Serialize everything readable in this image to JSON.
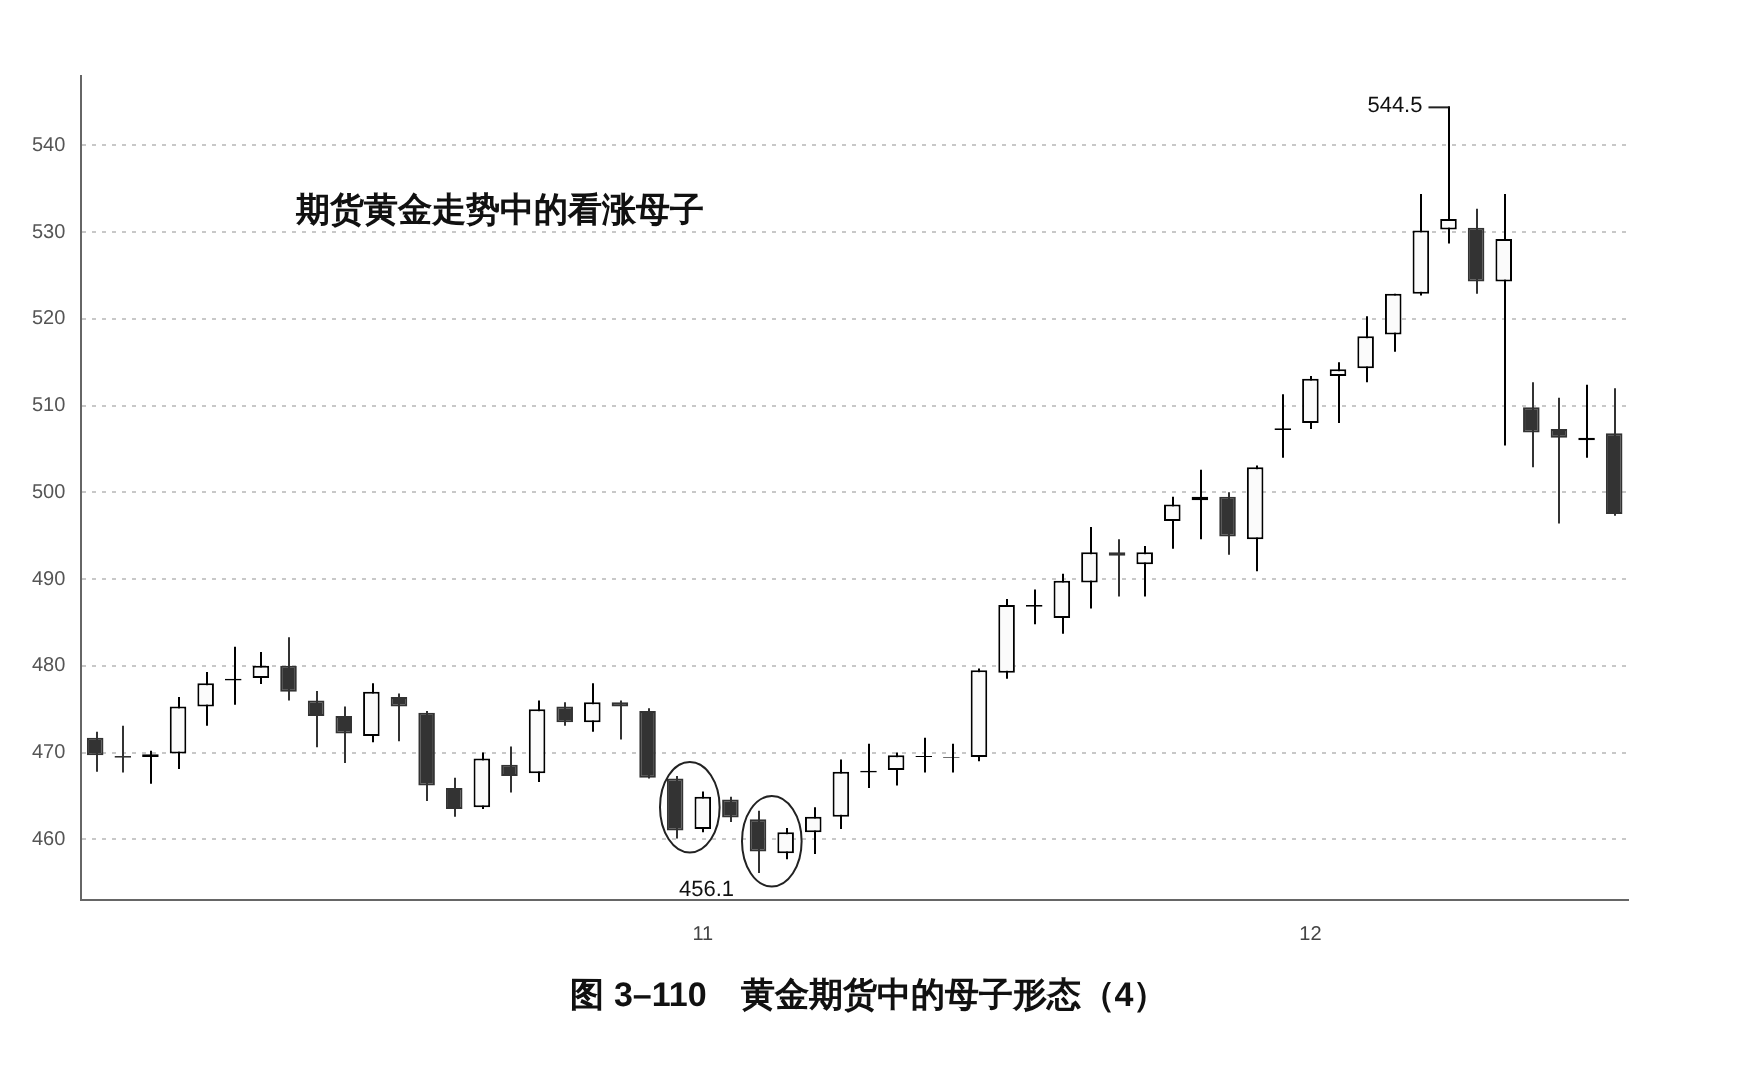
{
  "chart_data": {
    "type": "candlestick",
    "title": "图 3–110　黄金期货中的母子形态（4）",
    "annotations": [
      "期货黄金走势中的看涨母子",
      "544.5",
      "456.1"
    ],
    "categories": [
      null,
      null,
      null,
      null,
      null,
      null,
      null,
      null,
      null,
      null,
      null,
      null,
      null,
      null,
      null,
      null,
      null,
      null,
      null,
      null,
      null,
      null,
      "11",
      null,
      null,
      null,
      null,
      null,
      null,
      null,
      null,
      null,
      null,
      null,
      null,
      null,
      null,
      null,
      null,
      null,
      null,
      null,
      null,
      null,
      "12",
      null,
      null,
      null,
      null,
      null,
      null,
      null,
      null,
      null,
      null,
      null
    ],
    "ohlc": [
      [
        471.7,
        472.4,
        467.8,
        469.7
      ],
      [
        469.6,
        473.1,
        467.7,
        469.4
      ],
      [
        469.5,
        470.2,
        466.4,
        469.8
      ],
      [
        469.9,
        476.4,
        468.1,
        475.3
      ],
      [
        475.3,
        479.3,
        473.1,
        478.0
      ],
      [
        478.3,
        482.2,
        475.5,
        478.5
      ],
      [
        478.6,
        481.6,
        477.9,
        480.0
      ],
      [
        480.0,
        483.3,
        476.0,
        477.0
      ],
      [
        476.0,
        477.1,
        470.6,
        474.2
      ],
      [
        474.2,
        475.3,
        468.8,
        472.2
      ],
      [
        471.9,
        478.0,
        471.2,
        477.0
      ],
      [
        476.4,
        476.8,
        471.3,
        475.3
      ],
      [
        474.6,
        474.8,
        464.4,
        466.2
      ],
      [
        465.9,
        467.1,
        462.6,
        463.5
      ],
      [
        463.7,
        470.0,
        463.5,
        469.3
      ],
      [
        468.6,
        470.7,
        465.4,
        467.3
      ],
      [
        467.6,
        476.0,
        466.6,
        475.0
      ],
      [
        475.3,
        475.8,
        473.1,
        473.5
      ],
      [
        473.5,
        478.0,
        472.4,
        475.8
      ],
      [
        475.8,
        476.0,
        471.5,
        475.3
      ],
      [
        474.8,
        475.1,
        467.0,
        467.1
      ],
      [
        467.0,
        467.3,
        460.1,
        461.0
      ],
      [
        461.2,
        465.5,
        460.8,
        464.9
      ],
      [
        464.6,
        464.9,
        462.0,
        462.5
      ],
      [
        462.3,
        463.3,
        456.1,
        458.6
      ],
      [
        458.4,
        461.3,
        457.7,
        460.8
      ],
      [
        460.8,
        463.7,
        458.3,
        462.6
      ],
      [
        462.6,
        469.2,
        461.2,
        467.8
      ],
      [
        467.7,
        471.0,
        465.9,
        467.9
      ],
      [
        468.0,
        470.0,
        466.2,
        469.7
      ],
      [
        469.5,
        471.7,
        467.7,
        469.6
      ],
      [
        469.4,
        471.0,
        467.7,
        469.5
      ],
      [
        469.5,
        479.7,
        469.0,
        479.5
      ],
      [
        479.2,
        487.7,
        478.5,
        487.0
      ],
      [
        486.8,
        488.8,
        484.8,
        487.0
      ],
      [
        485.5,
        490.6,
        483.7,
        489.8
      ],
      [
        489.6,
        496.0,
        486.6,
        493.1
      ],
      [
        493.1,
        494.6,
        488.0,
        492.7
      ],
      [
        491.7,
        493.8,
        488.0,
        493.1
      ],
      [
        496.7,
        499.5,
        493.5,
        498.6
      ],
      [
        499.1,
        502.6,
        494.6,
        499.5
      ],
      [
        499.5,
        500.0,
        492.8,
        494.9
      ],
      [
        494.6,
        503.1,
        490.9,
        502.9
      ],
      [
        507.2,
        511.3,
        504.0,
        507.4
      ],
      [
        508.0,
        513.4,
        507.3,
        513.1
      ],
      [
        513.4,
        515.0,
        508.0,
        514.2
      ],
      [
        514.3,
        520.3,
        512.7,
        518.0
      ],
      [
        518.2,
        522.9,
        516.2,
        522.9
      ],
      [
        522.9,
        534.4,
        522.7,
        530.2
      ],
      [
        530.3,
        544.5,
        528.7,
        531.5
      ],
      [
        530.5,
        532.7,
        522.9,
        524.3
      ],
      [
        524.3,
        534.4,
        505.4,
        529.2
      ],
      [
        509.8,
        512.7,
        502.9,
        506.9
      ],
      [
        507.3,
        510.9,
        496.4,
        506.3
      ],
      [
        506.0,
        512.4,
        504.0,
        506.3
      ],
      [
        506.8,
        512.0,
        497.3,
        497.5
      ]
    ],
    "colors": [
      "#333333",
      "#333333",
      "#000000",
      "#000000",
      "#000000",
      "#000000",
      "#000000",
      "#333333",
      "#333333",
      "#333333",
      "#000000",
      "#333333",
      "#333333",
      "#333333",
      "#000000",
      "#333333",
      "#000000",
      "#333333",
      "#000000",
      "#333333",
      "#333333",
      "#333333",
      "#000000",
      "#333333",
      "#333333",
      "#000000",
      "#000000",
      "#000000",
      "#000000",
      "#000000",
      "#000000",
      "#000000",
      "#000000",
      "#000000",
      "#000000",
      "#000000",
      "#000000",
      "#333333",
      "#000000",
      "#000000",
      "#000000",
      "#333333",
      "#000000",
      "#000000",
      "#000000",
      "#000000",
      "#000000",
      "#000000",
      "#000000",
      "#000000",
      "#333333",
      "#000000",
      "#333333",
      "#333333",
      "#000000",
      "#333333"
    ],
    "ylim": [
      453,
      548
    ],
    "yticks": [
      460,
      470,
      480,
      490,
      500,
      510,
      520,
      530,
      540
    ],
    "grid": true,
    "legend": false
  }
}
